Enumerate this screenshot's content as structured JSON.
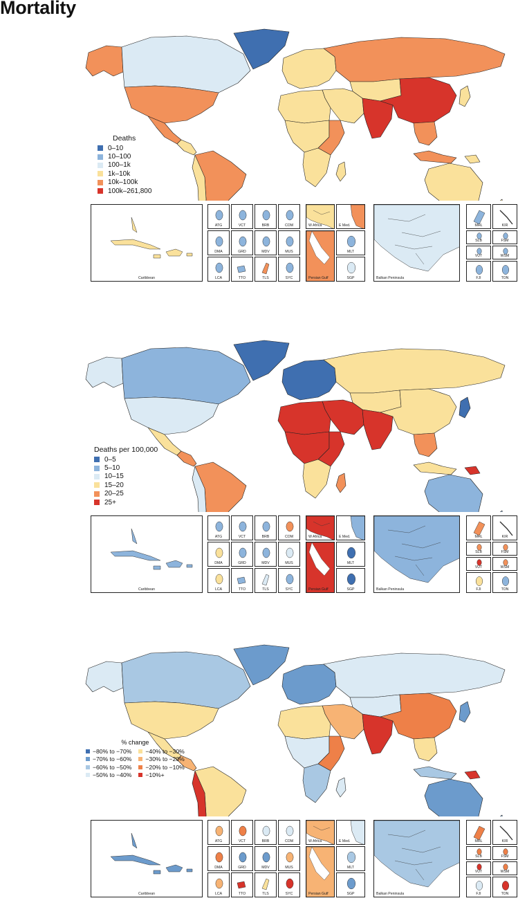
{
  "title": "Mortality",
  "panels": [
    {
      "id": "deaths",
      "legend_title": "Deaths",
      "legend": [
        {
          "label": "0–10",
          "color": "#3f6fb0"
        },
        {
          "label": "10–100",
          "color": "#8db4dc"
        },
        {
          "label": "100–1k",
          "color": "#dbeaf4"
        },
        {
          "label": "1k–10k",
          "color": "#fae19b"
        },
        {
          "label": "10k–100k",
          "color": "#f2915a"
        },
        {
          "label": "100k–261,800",
          "color": "#d7342b"
        }
      ],
      "fills": {
        "greenland": "#3f6fb0",
        "canada": "#dbeaf4",
        "alaska": "#f2915a",
        "usa": "#f2915a",
        "mexico": "#f2915a",
        "central_am": "#fae19b",
        "south_am": "#f2915a",
        "south_am_west": "#fae19b",
        "europe": "#fae19b",
        "russia": "#f2915a",
        "mideast": "#fae19b",
        "africa_n": "#fae19b",
        "africa_c": "#fae19b",
        "africa_e": "#f2915a",
        "africa_s": "#fae19b",
        "madagascar": "#fae19b",
        "india": "#d7342b",
        "china": "#d7342b",
        "central_asia": "#fae19b",
        "se_asia": "#f2915a",
        "indonesia": "#f2915a",
        "japan": "#fae19b",
        "australia": "#fae19b",
        "nz": "#fae19b",
        "png": "#fae19b"
      },
      "insets": {
        "caribbean": "#fae19b",
        "atg": "#8db4dc",
        "vct": "#8db4dc",
        "brb": "#8db4dc",
        "com": "#8db4dc",
        "dma": "#8db4dc",
        "grd": "#8db4dc",
        "mdv": "#8db4dc",
        "mus": "#8db4dc",
        "lca": "#8db4dc",
        "tto": "#8db4dc",
        "tls": "#f2915a",
        "syc": "#8db4dc",
        "w_africa": "#fae19b",
        "e_med": "#f2915a",
        "persian_gulf": "#f2915a",
        "mlt": "#8db4dc",
        "sgp": "#dbeaf4",
        "balkan": "#dbeaf4",
        "mhl": "#8db4dc",
        "kir": "#8db4dc",
        "slb": "#8db4dc",
        "fsm": "#8db4dc",
        "vut": "#8db4dc",
        "wsm": "#8db4dc",
        "fji": "#8db4dc",
        "ton": "#8db4dc"
      }
    },
    {
      "id": "rate",
      "legend_title": "Deaths per 100,000",
      "legend": [
        {
          "label": "0–5",
          "color": "#3f6fb0"
        },
        {
          "label": "5–10",
          "color": "#8db4dc"
        },
        {
          "label": "10–15",
          "color": "#dbeaf4"
        },
        {
          "label": "15–20",
          "color": "#fae19b"
        },
        {
          "label": "20–25",
          "color": "#f2915a"
        },
        {
          "label": "25+",
          "color": "#d7342b"
        }
      ],
      "fills": {
        "greenland": "#3f6fb0",
        "canada": "#8db4dc",
        "alaska": "#dbeaf4",
        "usa": "#dbeaf4",
        "mexico": "#fae19b",
        "central_am": "#f2915a",
        "south_am": "#f2915a",
        "south_am_west": "#dbeaf4",
        "europe": "#3f6fb0",
        "russia": "#fae19b",
        "mideast": "#d7342b",
        "africa_n": "#d7342b",
        "africa_c": "#d7342b",
        "africa_e": "#d7342b",
        "africa_s": "#fae19b",
        "madagascar": "#f2915a",
        "india": "#d7342b",
        "china": "#fae19b",
        "central_asia": "#fae19b",
        "se_asia": "#f2915a",
        "indonesia": "#fae19b",
        "japan": "#3f6fb0",
        "australia": "#8db4dc",
        "nz": "#8db4dc",
        "png": "#d7342b"
      },
      "insets": {
        "caribbean": "#8db4dc",
        "atg": "#8db4dc",
        "vct": "#8db4dc",
        "brb": "#8db4dc",
        "com": "#f2915a",
        "dma": "#fae19b",
        "grd": "#8db4dc",
        "mdv": "#8db4dc",
        "mus": "#dbeaf4",
        "lca": "#fae19b",
        "tto": "#8db4dc",
        "tls": "#dbeaf4",
        "syc": "#8db4dc",
        "w_africa": "#d7342b",
        "e_med": "#8db4dc",
        "persian_gulf": "#d7342b",
        "mlt": "#3f6fb0",
        "sgp": "#3f6fb0",
        "balkan": "#8db4dc",
        "mhl": "#f2915a",
        "kir": "#8db4dc",
        "slb": "#f2915a",
        "fsm": "#f2915a",
        "vut": "#d7342b",
        "wsm": "#f2915a",
        "fji": "#fae19b",
        "ton": "#8db4dc"
      }
    },
    {
      "id": "change",
      "legend_title": "% change",
      "legend": [
        {
          "label": "−80% to −70%",
          "color": "#3f6fb0"
        },
        {
          "label": "−40% to −30%",
          "color": "#fae19b"
        },
        {
          "label": "−70% to −60%",
          "color": "#6c9bcc"
        },
        {
          "label": "−30% to −20%",
          "color": "#f7b374"
        },
        {
          "label": "−60% to −50%",
          "color": "#a9c8e3"
        },
        {
          "label": "−20% to −10%",
          "color": "#ee8048"
        },
        {
          "label": "−50% to −40%",
          "color": "#dbeaf4"
        },
        {
          "label": "−10%+",
          "color": "#d7342b"
        }
      ],
      "fills": {
        "greenland": "#6c9bcc",
        "canada": "#a9c8e3",
        "alaska": "#dbeaf4",
        "usa": "#fae19b",
        "mexico": "#fae19b",
        "central_am": "#f7b374",
        "south_am": "#fae19b",
        "south_am_west": "#d7342b",
        "europe": "#6c9bcc",
        "russia": "#dbeaf4",
        "mideast": "#f7b374",
        "africa_n": "#fae19b",
        "africa_c": "#dbeaf4",
        "africa_e": "#ee8048",
        "africa_s": "#a9c8e3",
        "madagascar": "#dbeaf4",
        "india": "#d7342b",
        "china": "#ee8048",
        "central_asia": "#dbeaf4",
        "se_asia": "#fae19b",
        "indonesia": "#a9c8e3",
        "japan": "#6c9bcc",
        "australia": "#6c9bcc",
        "nz": "#6c9bcc",
        "png": "#d7342b"
      },
      "insets": {
        "caribbean": "#6c9bcc",
        "atg": "#f7b374",
        "vct": "#ee8048",
        "brb": "#dbeaf4",
        "com": "#dbeaf4",
        "dma": "#ee8048",
        "grd": "#6c9bcc",
        "mdv": "#6c9bcc",
        "mus": "#f7b374",
        "lca": "#f7b374",
        "tto": "#d7342b",
        "tls": "#fae19b",
        "syc": "#d7342b",
        "w_africa": "#f7b374",
        "e_med": "#dbeaf4",
        "persian_gulf": "#f7b374",
        "mlt": "#a9c8e3",
        "sgp": "#6c9bcc",
        "balkan": "#a9c8e3",
        "mhl": "#ee8048",
        "kir": "#a9c8e3",
        "slb": "#ee8048",
        "fsm": "#ee8048",
        "vut": "#d7342b",
        "wsm": "#ee8048",
        "fji": "#dbeaf4",
        "ton": "#d7342b"
      }
    }
  ],
  "inset_labels": {
    "caribbean": "Caribbean",
    "atg": "ATG",
    "vct": "VCT",
    "brb": "BRB",
    "com": "COM",
    "dma": "DMA",
    "grd": "GRD",
    "mdv": "MDV",
    "mus": "MUS",
    "lca": "LCA",
    "tto": "TTO",
    "tls": "TLS",
    "syc": "SYC",
    "w_africa": "W Africa",
    "e_med": "E Med.",
    "persian_gulf": "Persian Gulf",
    "mlt": "MLT",
    "sgp": "SGP",
    "balkan": "Balkan Peninsula",
    "mhl": "MHL",
    "kir": "KIR",
    "slb": "SLB",
    "fsm": "FSM",
    "vut": "VUT",
    "wsm": "WSM",
    "fji": "FJI",
    "ton": "TON"
  }
}
